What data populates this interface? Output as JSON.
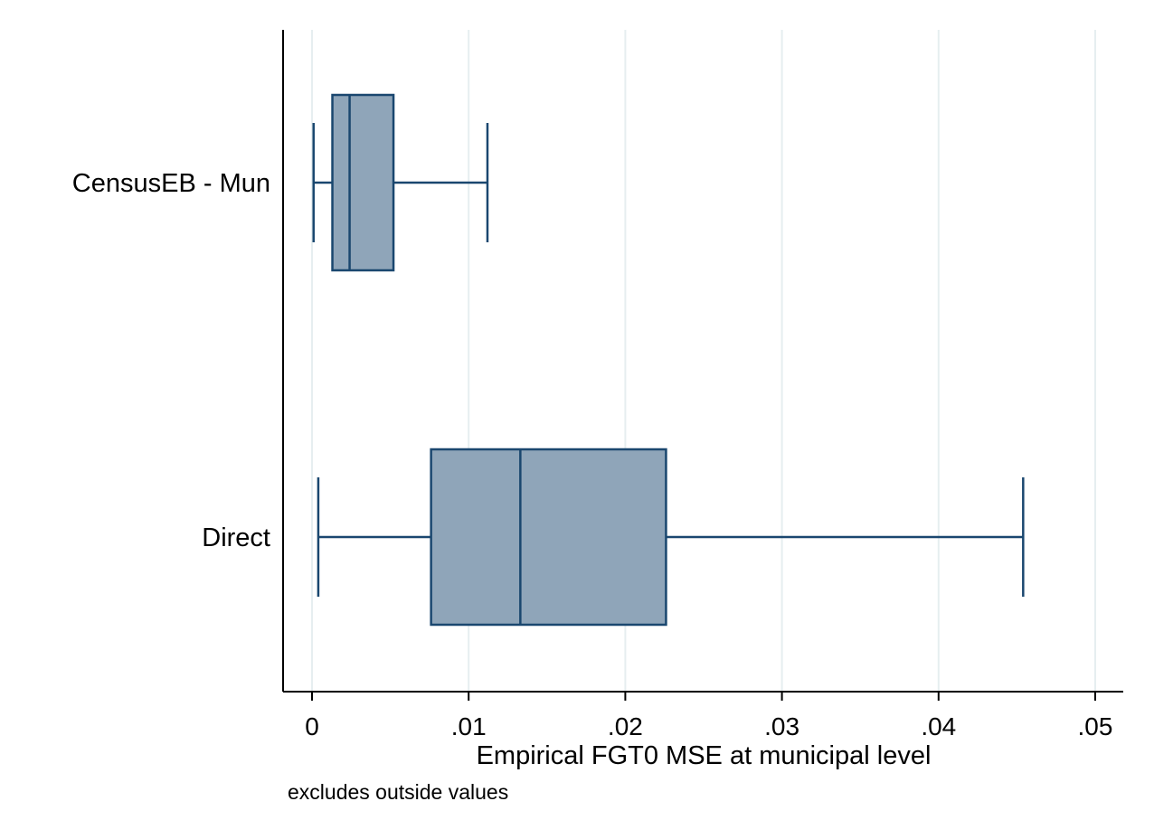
{
  "chart_data": {
    "type": "boxplot",
    "orientation": "horizontal",
    "categories": [
      "CensusEB - Mun",
      "Direct"
    ],
    "boxes": [
      {
        "category": "CensusEB - Mun",
        "whisker_low": 0.0001,
        "q1": 0.0013,
        "median": 0.0024,
        "q3": 0.0052,
        "whisker_high": 0.0112
      },
      {
        "category": "Direct",
        "whisker_low": 0.0004,
        "q1": 0.0076,
        "median": 0.0133,
        "q3": 0.0226,
        "whisker_high": 0.0454
      }
    ],
    "xlim": [
      0,
      0.05
    ],
    "x_ticks": [
      0,
      0.01,
      0.02,
      0.03,
      0.04,
      0.05
    ],
    "x_tick_labels": [
      "0",
      ".01",
      ".02",
      ".03",
      ".04",
      ".05"
    ],
    "xlabel": "Empirical FGT0 MSE at municipal level",
    "note": "excludes outside values",
    "grid": "vertical",
    "colors": {
      "box_fill": "#8fa5b9",
      "box_stroke": "#1a476f",
      "grid": "#e6eef0",
      "axis": "#000000"
    }
  }
}
